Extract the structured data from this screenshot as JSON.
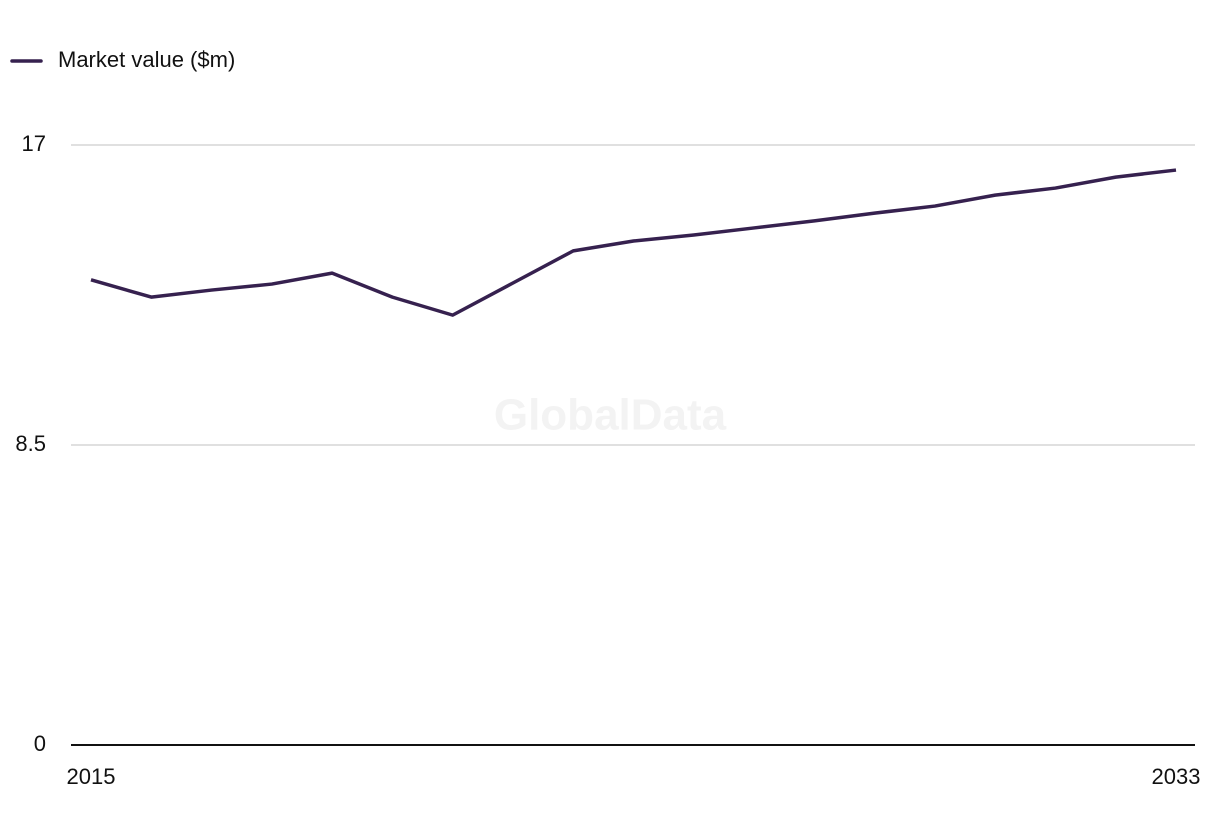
{
  "chart_data": {
    "type": "line",
    "watermark": "GlobalData",
    "x": [
      2015,
      2016,
      2017,
      2018,
      2019,
      2020,
      2021,
      2022,
      2023,
      2024,
      2025,
      2026,
      2027,
      2028,
      2029,
      2030,
      2031,
      2032,
      2033
    ],
    "series": [
      {
        "name": "Market value ($m)",
        "color": "#36214f",
        "values": [
          13.18,
          12.69,
          12.89,
          13.06,
          13.37,
          12.69,
          12.18,
          13.09,
          14.0,
          14.28,
          14.45,
          14.65,
          14.85,
          15.07,
          15.27,
          15.58,
          15.78,
          16.09,
          16.29
        ]
      }
    ],
    "xlim": [
      2015,
      2033
    ],
    "xticks": [
      2015,
      2033
    ],
    "ylim": [
      0,
      17
    ],
    "yticks": [
      0,
      8.5,
      17
    ],
    "grid": true,
    "legend": "top-left"
  }
}
